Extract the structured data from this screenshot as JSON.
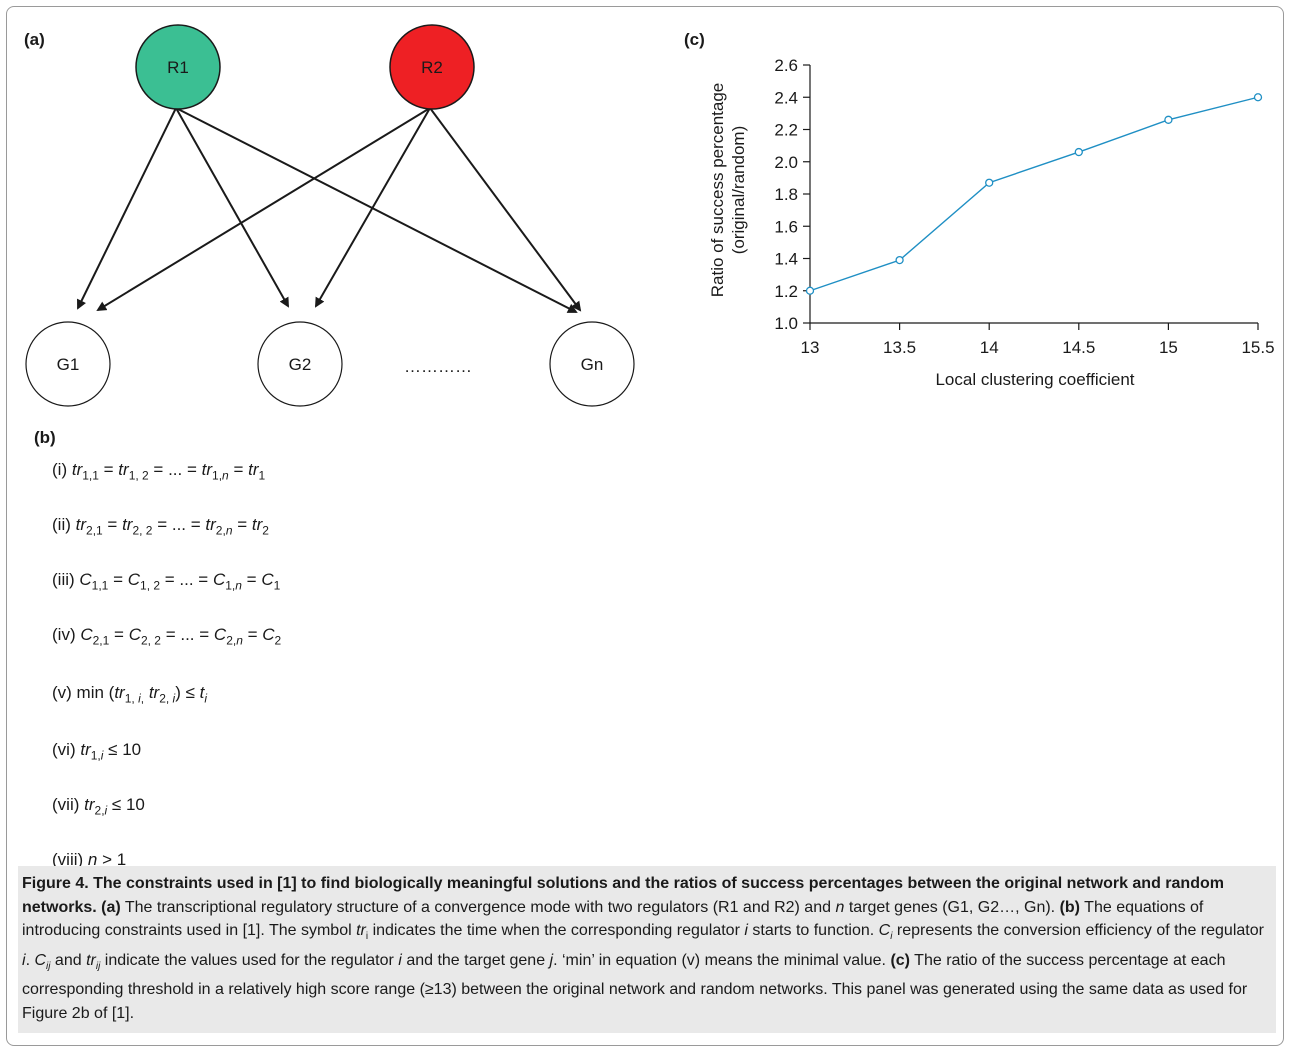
{
  "panel_a": {
    "label": "(a)",
    "regulators": [
      {
        "name": "R1",
        "color": "#3bbf93"
      },
      {
        "name": "R2",
        "color": "#ee2024"
      }
    ],
    "targets": [
      "G1",
      "G2",
      "Gn"
    ],
    "ellipsis": "…………"
  },
  "panel_b": {
    "label": "(b)",
    "equations": [
      {
        "num": "(i)"
      },
      {
        "num": "(ii)"
      },
      {
        "num": "(iii)"
      },
      {
        "num": "(iv)"
      },
      {
        "num": "(v)"
      },
      {
        "num": "(vi)"
      },
      {
        "num": "(vii)"
      },
      {
        "num": "(viii)"
      }
    ]
  },
  "panel_c": {
    "label": "(c)"
  },
  "chart_data": {
    "type": "line",
    "xlabel": "Local clustering coefficient",
    "ylabel_line1": "Ratio of success percentage",
    "ylabel_line2": "(original/random)",
    "x": [
      13,
      13.5,
      14,
      14.5,
      15,
      15.5
    ],
    "y": [
      1.2,
      1.39,
      1.87,
      2.06,
      2.26,
      2.4
    ],
    "xlim": [
      13,
      15.5
    ],
    "ylim": [
      1.0,
      2.6
    ],
    "xticks": [
      "13",
      "13.5",
      "14",
      "14.5",
      "15",
      "15.5"
    ],
    "yticks": [
      "1.0",
      "1.2",
      "1.4",
      "1.6",
      "1.8",
      "2.0",
      "2.2",
      "2.4",
      "2.6"
    ],
    "line_color": "#1f8fc4",
    "grid": false
  },
  "caption": {
    "title": "Figure 4. The constraints used in [1] to find biologically meaningful solutions and the ratios of success percentages between the original network and random networks.",
    "a_label": "(a)",
    "a_text": "The transcriptional regulatory structure of a convergence mode with two regulators (R1 and R2) and",
    "n_var": "n",
    "a_text2": "target genes (G1, G2…, Gn).",
    "b_label": "(b)",
    "b_text": "The equations of introducing constraints used in [1]. The symbol",
    "b_tr": "tr",
    "b_tr_sub": "i",
    "b_text2": "indicates the time when the corresponding regulator",
    "b_i": "i",
    "b_text3": "starts to function.",
    "b_C": "C",
    "b_C_sub": "i",
    "b_text4": "represents the conversion efficiency of the regulator",
    "b_i2": "i",
    "b_C2": "C",
    "b_C2_sub": "ij",
    "b_and": "and",
    "b_tr2": "tr",
    "b_tr2_sub": "ij",
    "b_text5": "indicate the values used for the regulator",
    "b_i3": "i",
    "b_text6": "and the target gene",
    "b_j": "j",
    "b_text7": "‘min’ in equation (v) means the minimal value.",
    "c_label": "(c)",
    "c_text": "The ratio of the success percentage at each corresponding threshold in a relatively high score range (≥13) between the original network and random networks. This panel was generated using the same data as used for Figure 2b of [1]."
  }
}
